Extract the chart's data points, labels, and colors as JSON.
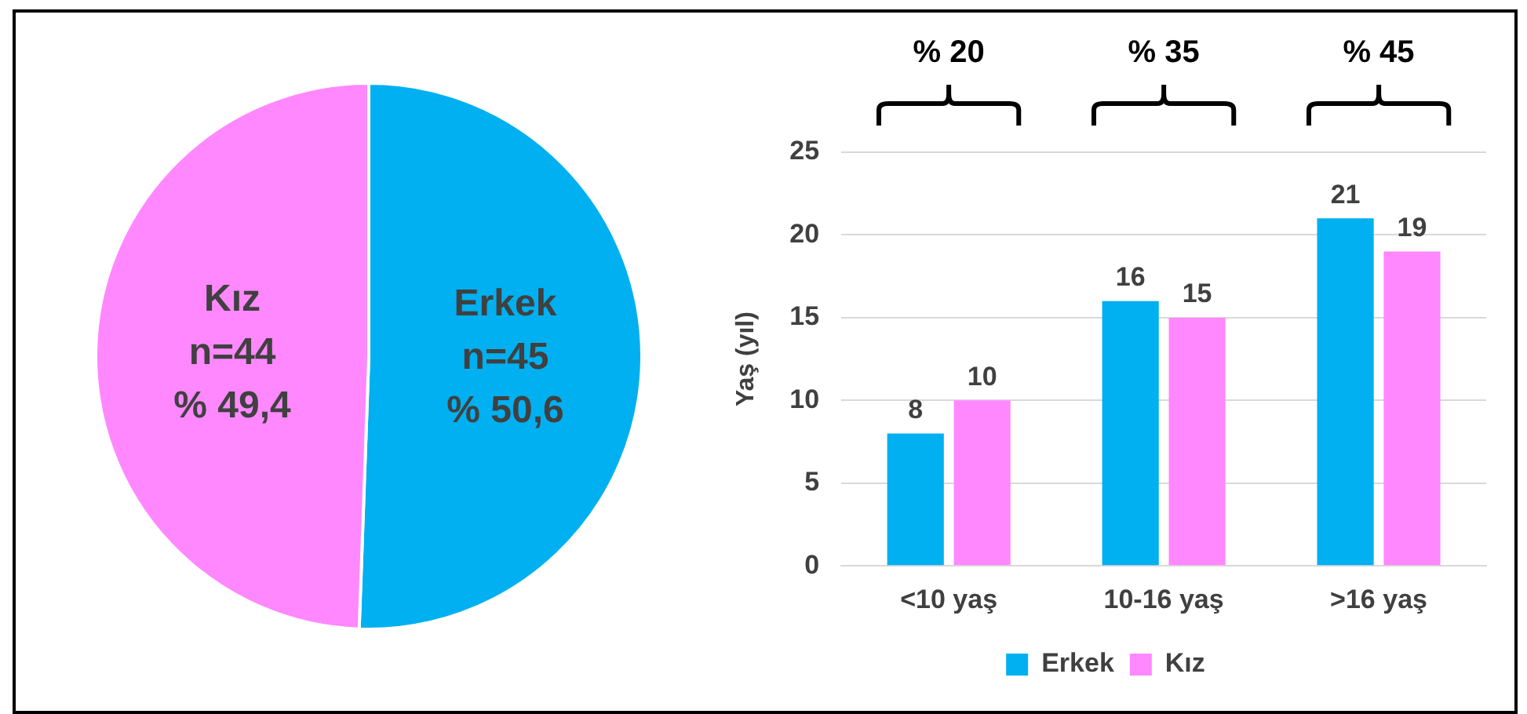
{
  "chart_data": [
    {
      "type": "pie",
      "categories": [
        "Erkek",
        "Kız"
      ],
      "values": [
        45,
        44
      ],
      "colors": [
        "#00b0f0",
        "#ff88ff"
      ],
      "value_labels": [
        "n=45\n% 50,6",
        "n=44\n% 49,4"
      ],
      "legend": false
    },
    {
      "type": "bar",
      "categories": [
        "<10 yaş",
        "10-16 yaş",
        ">16 yaş"
      ],
      "ylabel": "Yaş (yıl)",
      "series": [
        {
          "name": "Erkek",
          "color": "#00b0f0",
          "values": [
            8,
            16,
            21
          ]
        },
        {
          "name": "Kız",
          "color": "#ff88ff",
          "values": [
            10,
            15,
            19
          ]
        }
      ],
      "ylim": [
        0,
        25
      ],
      "yticks": [
        0,
        5,
        10,
        15,
        20,
        25
      ],
      "grid": "y",
      "legend": "bottom",
      "data_labels": true,
      "annotations": [
        "% 20",
        "% 35",
        "% 45"
      ]
    }
  ]
}
